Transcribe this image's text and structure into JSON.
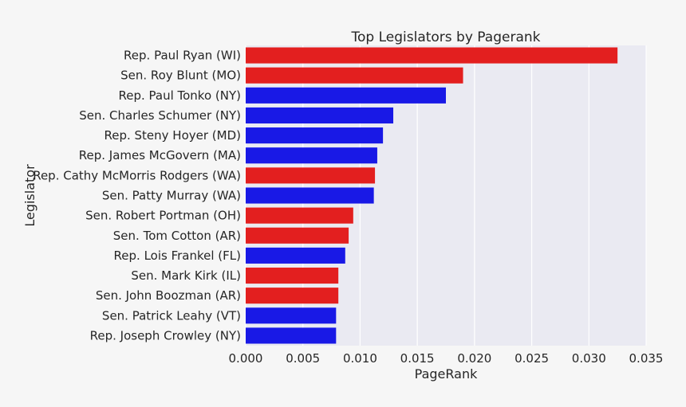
{
  "chart_data": {
    "type": "bar",
    "orientation": "horizontal",
    "title": "Top Legislators by Pagerank",
    "xlabel": "PageRank",
    "ylabel": "Legislator",
    "xlim": [
      0,
      0.035
    ],
    "xticks": [
      "0.000",
      "0.005",
      "0.010",
      "0.015",
      "0.020",
      "0.025",
      "0.030",
      "0.035"
    ],
    "grid": true,
    "background": "#eaeaf2",
    "party_colors": {
      "R": "#e31f1f",
      "D": "#1919e6"
    },
    "categories": [
      "Rep. Paul Ryan (WI)",
      "Sen. Roy Blunt (MO)",
      "Rep. Paul Tonko (NY)",
      "Sen. Charles Schumer (NY)",
      "Rep. Steny Hoyer (MD)",
      "Rep. James McGovern (MA)",
      "Rep. Cathy McMorris Rodgers (WA)",
      "Sen. Patty Murray (WA)",
      "Sen. Robert Portman (OH)",
      "Sen. Tom Cotton (AR)",
      "Rep. Lois Frankel (FL)",
      "Sen. Mark Kirk (IL)",
      "Sen. John Boozman (AR)",
      "Sen. Patrick Leahy (VT)",
      "Rep. Joseph Crowley (NY)"
    ],
    "values": [
      0.0325,
      0.019,
      0.0175,
      0.0129,
      0.012,
      0.0115,
      0.0113,
      0.0112,
      0.0094,
      0.009,
      0.0087,
      0.0081,
      0.0081,
      0.0079,
      0.0079
    ],
    "party": [
      "R",
      "R",
      "D",
      "D",
      "D",
      "D",
      "R",
      "D",
      "R",
      "R",
      "D",
      "R",
      "R",
      "D",
      "D"
    ]
  }
}
